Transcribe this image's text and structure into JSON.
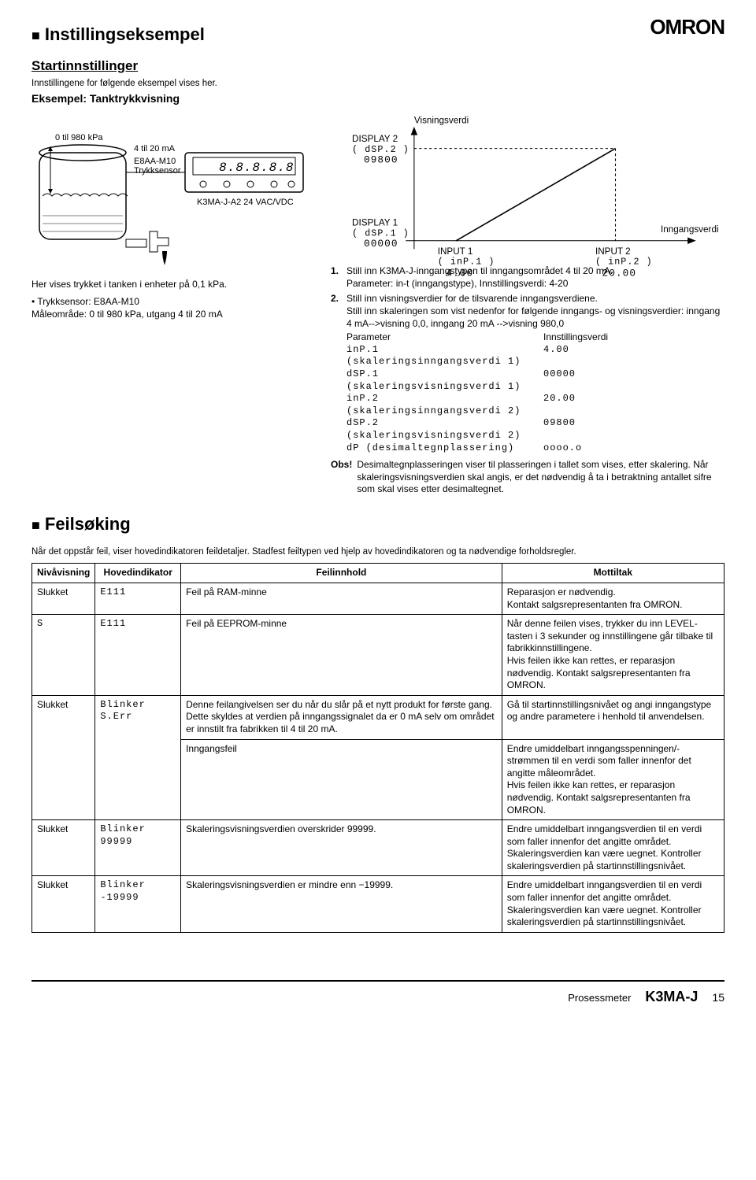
{
  "brand": "OMRON",
  "h1": "Instillingseksempel",
  "h1b": "Feilsøking",
  "h2_start": "Startinnstillinger",
  "start_sub": "Innstillingene for følgende eksempel vises her.",
  "h3_example": "Eksempel: Tanktrykkvisning",
  "tank": {
    "range": "0 til 980 kPa",
    "signal": "4 til 20 mA",
    "sensor": "E8AA-M10\nTrykksensor",
    "meter_model": "K3MA-J-A2 24 VAC/VDC",
    "meter_display": "8.8.8.8.8"
  },
  "under_tank_1": "Her vises trykket i tanken i enheter på 0,1 kPa.",
  "under_tank_2": "• Trykksensor: E8AA-M10\n  Måleområde: 0 til 980 kPa, utgang 4 til 20 mA",
  "chart": {
    "visnings_label": "Visningsverdi",
    "disp2_label": "DISPLAY 2",
    "disp2_param": "( dSP.2 )",
    "disp2_val": "09800",
    "disp1_label": "DISPLAY 1",
    "disp1_param": "( dSP.1 )",
    "disp1_val": "00000",
    "inng_label": "Inngangsverdi",
    "in1_label": "INPUT 1",
    "in1_param": "( inP.1 )",
    "in1_val": "4.00",
    "in2_label": "INPUT 2",
    "in2_param": "( inP.2 )",
    "in2_val": "20.00"
  },
  "steps": {
    "s1": "Still inn K3MA-J-inngangstypen til inngangsområdet 4 til 20 mA.\nParameter: in-t (inngangstype), Innstillingsverdi: 4-20",
    "s2a": "Still inn visningsverdier for de tilsvarende inngangsverdiene.\nStill inn skaleringen som vist nedenfor for følgende inngangs- og visningsverdier: inngang 4 mA-->visning 0,0, inngang 20 mA -->visning 980,0",
    "param_head_l": "Parameter",
    "param_head_r": "Innstillingsverdi",
    "rows": [
      [
        "inP.1 (skaleringsinngangsverdi 1)",
        "4.00"
      ],
      [
        "dSP.1 (skaleringsvisningsverdi 1)",
        "00000"
      ],
      [
        "inP.2 (skaleringsinngangsverdi 2)",
        "20.00"
      ],
      [
        "dSP.2 (skaleringsvisningsverdi 2)",
        "09800"
      ],
      [
        "dP (desimaltegnplassering)",
        "oooo.o"
      ]
    ],
    "obs_label": "Obs!",
    "obs_text": "Desimaltegnplasseringen viser til plasseringen i tallet som vises, etter skalering. Når skaleringsvisningsverdien skal angis, er det nødvendig å ta i betraktning antallet sifre som skal vises etter desimaltegnet."
  },
  "troubleshoot_intro": "Når det oppstår feil, viser hovedindikatoren feildetaljer. Stadfest feiltypen ved hjelp av hovedindikatoren og ta nødvendige forholdsregler.",
  "table": {
    "headers": [
      "Nivåvisning",
      "Hovedindikator",
      "Feilinnhold",
      "Mottiltak"
    ],
    "rows": [
      {
        "c1": "Slukket",
        "c2": "E111",
        "c3": "Feil på RAM-minne",
        "c4": "Reparasjon er nødvendig.\nKontakt salgsrepresentanten fra OMRON."
      },
      {
        "c1": "S",
        "c2": "E111",
        "c3": "Feil på EEPROM-minne",
        "c4": "Når denne feilen vises, trykker du inn LEVEL-tasten i 3 sekunder og innstillingene går tilbake til fabrikkinnstillingene.\nHvis feilen ikke kan rettes, er reparasjon nødvendig. Kontakt salgsrepresentanten fra OMRON."
      },
      {
        "c1": "Slukket",
        "c2": "Blinker S.Err",
        "c3": "Denne feilangivelsen ser du når du slår på et nytt produkt for første gang. Dette skyldes at verdien på inngangssignalet da er 0 mA selv om området er innstilt fra fabrikken til 4 til 20 mA.",
        "c4": "Gå til startinnstillingsnivået og angi inngangstype og andre parametere i henhold til anvendelsen."
      },
      {
        "c1": "",
        "c2": "",
        "c3": "Inngangsfeil",
        "c4": "Endre umiddelbart inngangsspenningen/-strømmen til en verdi som faller innenfor det angitte måleområdet.\nHvis feilen ikke kan rettes, er reparasjon nødvendig. Kontakt salgsrepresentanten fra OMRON."
      },
      {
        "c1": "Slukket",
        "c2": "Blinker 99999",
        "c3": "Skaleringsvisningsverdien overskrider 99999.",
        "c4": "Endre umiddelbart inngangsverdien til en verdi som faller innenfor det angitte området.\nSkaleringsverdien kan være uegnet. Kontroller skaleringsverdien på startinnstillingsnivået."
      },
      {
        "c1": "Slukket",
        "c2": "Blinker -19999",
        "c3": "Skaleringsvisningsverdien er mindre enn −19999.",
        "c4": "Endre umiddelbart inngangsverdien til en verdi som faller innenfor det angitte området.\nSkaleringsverdien kan være uegnet. Kontroller skaleringsverdien på startinnstillingsnivået."
      }
    ]
  },
  "footer": {
    "product": "Prosessmeter",
    "model": "K3MA-J",
    "page": "15"
  }
}
